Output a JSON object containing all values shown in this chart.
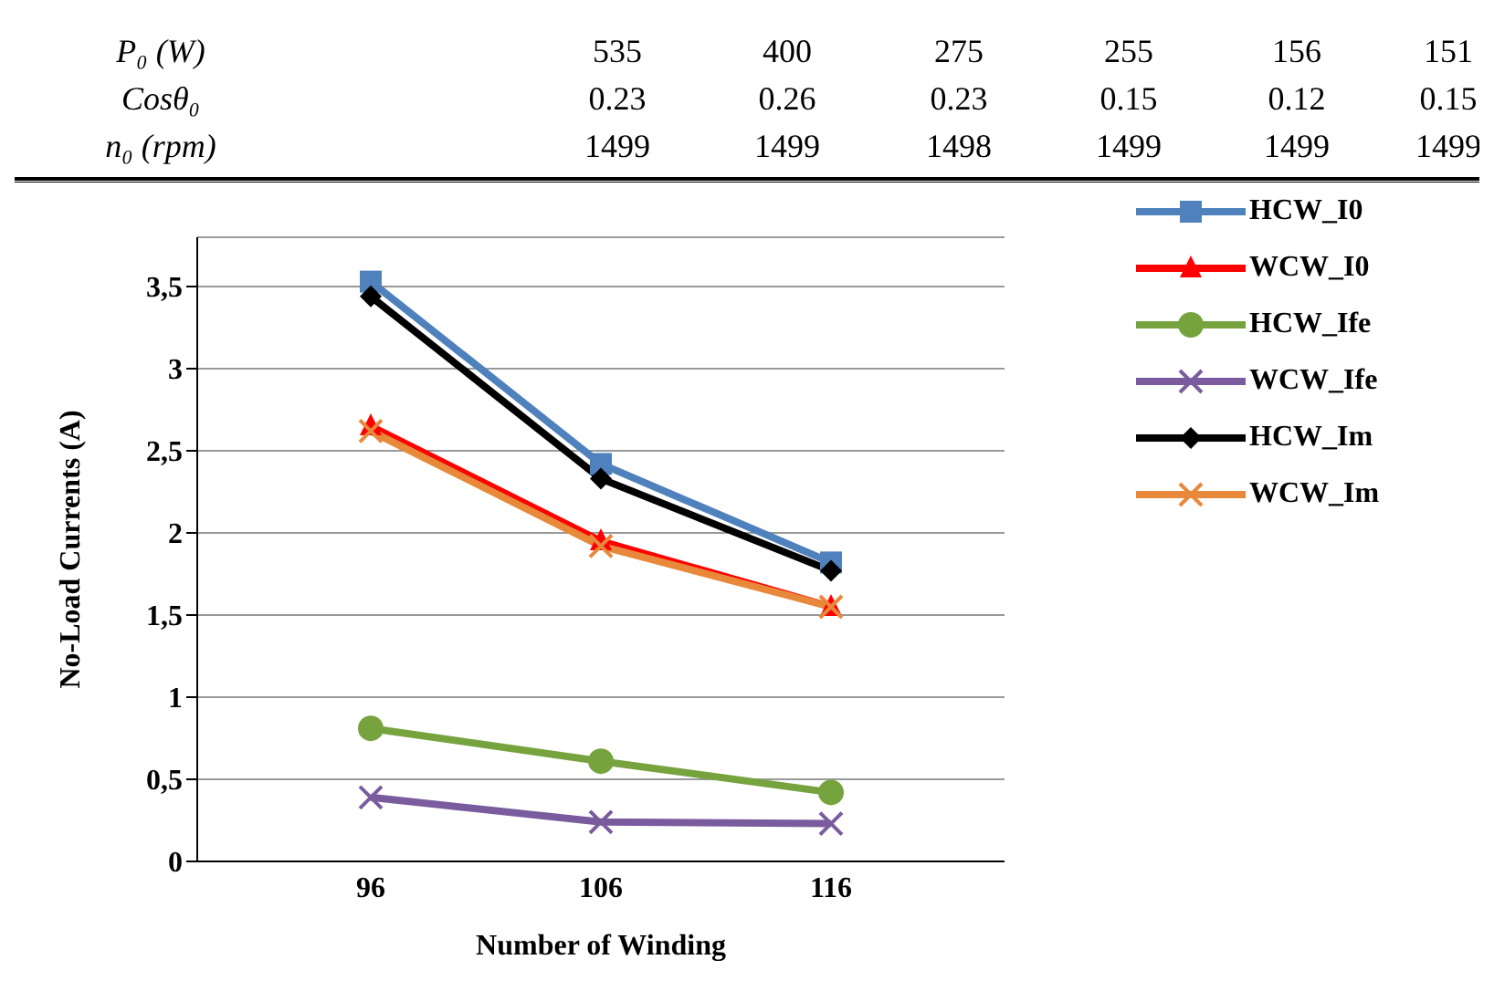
{
  "chart_data": {
    "type": "line",
    "annotations": [
      "P₀ (W)",
      "535",
      "400",
      "275",
      "255",
      "156",
      "151",
      "Cosθ₀",
      "0.23",
      "0.26",
      "0.23",
      "0.15",
      "0.12",
      "0.15",
      "n₀ (rpm)",
      "1499",
      "1499",
      "1498",
      "1499",
      "1499",
      "1499"
    ],
    "xlabel": "Number of Winding",
    "ylabel": "No-Load Currents (A)",
    "categories": [
      "96",
      "106",
      "116"
    ],
    "series": [
      {
        "name": "HCW_I0",
        "color": "#4f81bd",
        "marker": "square",
        "values": [
          3.53,
          2.42,
          1.82
        ]
      },
      {
        "name": "WCW_I0",
        "color": "#ff0000",
        "marker": "triangle",
        "values": [
          2.65,
          1.95,
          1.55
        ]
      },
      {
        "name": "HCW_Ife",
        "color": "#77a33f",
        "marker": "circle",
        "values": [
          0.81,
          0.61,
          0.42
        ]
      },
      {
        "name": "WCW_Ife",
        "color": "#7a5c9e",
        "marker": "cross",
        "values": [
          0.39,
          0.24,
          0.23
        ]
      },
      {
        "name": "HCW_Im",
        "color": "#000000",
        "marker": "diamond",
        "values": [
          3.44,
          2.33,
          1.77
        ]
      },
      {
        "name": "WCW_Im",
        "color": "#e8883a",
        "marker": "cross",
        "values": [
          2.62,
          1.92,
          1.55
        ]
      }
    ],
    "ylim": [
      0,
      3.8
    ],
    "yticks": [
      0,
      {
        "value": 0.5,
        "label": "0,5"
      },
      1,
      {
        "value": 1.5,
        "label": "1,5"
      },
      2,
      {
        "value": 2.5,
        "label": "2,5"
      },
      3,
      {
        "value": 3.5,
        "label": "3,5"
      }
    ],
    "grid": "y",
    "legend": "top right",
    "line_style": "solid"
  }
}
